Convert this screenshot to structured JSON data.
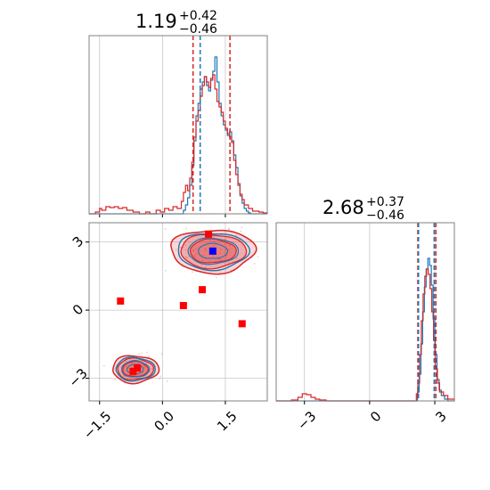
{
  "chart_data": {
    "type": "corner",
    "parameters": 2,
    "colors": {
      "blue": "#1f77b4",
      "red": "#d62728",
      "grid": "#b0b0b0",
      "frame": "#808080"
    },
    "grid": true,
    "titles": [
      {
        "value": "1.19",
        "upper": "+0.42",
        "lower": "−0.46"
      },
      {
        "value": "2.68",
        "upper": "+0.37",
        "lower": "−0.46"
      }
    ],
    "panel_x0": {
      "type": "histogram",
      "xlim": [
        -1.75,
        2.5
      ],
      "ylim": [
        0,
        1
      ],
      "quantile_lines": {
        "blue": [
          0.9
        ],
        "red": [
          0.73,
          1.61
        ]
      },
      "blue_step": [
        [
          -1.75,
          0
        ],
        [
          0.45,
          0
        ],
        [
          0.5,
          0.02
        ],
        [
          0.55,
          0.05
        ],
        [
          0.6,
          0.09
        ],
        [
          0.65,
          0.16
        ],
        [
          0.7,
          0.27
        ],
        [
          0.75,
          0.41
        ],
        [
          0.8,
          0.55
        ],
        [
          0.85,
          0.62
        ],
        [
          0.9,
          0.7
        ],
        [
          0.95,
          0.74
        ],
        [
          1.0,
          0.77
        ],
        [
          1.05,
          0.72
        ],
        [
          1.1,
          0.69
        ],
        [
          1.15,
          0.75
        ],
        [
          1.2,
          0.8
        ],
        [
          1.25,
          0.88
        ],
        [
          1.3,
          0.74
        ],
        [
          1.35,
          0.62
        ],
        [
          1.4,
          0.55
        ],
        [
          1.45,
          0.5
        ],
        [
          1.5,
          0.47
        ],
        [
          1.55,
          0.44
        ],
        [
          1.6,
          0.46
        ],
        [
          1.65,
          0.41
        ],
        [
          1.7,
          0.33
        ],
        [
          1.75,
          0.26
        ],
        [
          1.8,
          0.17
        ],
        [
          1.85,
          0.1
        ],
        [
          1.9,
          0.06
        ],
        [
          1.95,
          0.03
        ],
        [
          2.0,
          0.015
        ],
        [
          2.05,
          0.005
        ],
        [
          2.1,
          0
        ],
        [
          2.5,
          0
        ]
      ],
      "red_step": [
        [
          -1.75,
          0
        ],
        [
          -1.6,
          0.01
        ],
        [
          -1.5,
          0.03
        ],
        [
          -1.45,
          0.02
        ],
        [
          -1.35,
          0.04
        ],
        [
          -1.25,
          0.035
        ],
        [
          -1.15,
          0.04
        ],
        [
          -1.05,
          0.03
        ],
        [
          -0.95,
          0.035
        ],
        [
          -0.85,
          0.02
        ],
        [
          -0.7,
          0.01
        ],
        [
          -0.55,
          0
        ],
        [
          -0.4,
          0.01
        ],
        [
          -0.3,
          0
        ],
        [
          -0.15,
          0.02
        ],
        [
          -0.05,
          0.01
        ],
        [
          0.05,
          0.03
        ],
        [
          0.15,
          0.02
        ],
        [
          0.25,
          0.04
        ],
        [
          0.35,
          0.03
        ],
        [
          0.45,
          0.07
        ],
        [
          0.5,
          0.12
        ],
        [
          0.55,
          0.16
        ],
        [
          0.6,
          0.13
        ],
        [
          0.65,
          0.2
        ],
        [
          0.7,
          0.29
        ],
        [
          0.75,
          0.43
        ],
        [
          0.8,
          0.52
        ],
        [
          0.85,
          0.58
        ],
        [
          0.9,
          0.66
        ],
        [
          0.95,
          0.72
        ],
        [
          1.0,
          0.77
        ],
        [
          1.05,
          0.74
        ],
        [
          1.1,
          0.71
        ],
        [
          1.15,
          0.76
        ],
        [
          1.2,
          0.78
        ],
        [
          1.25,
          0.7
        ],
        [
          1.3,
          0.63
        ],
        [
          1.35,
          0.6
        ],
        [
          1.4,
          0.57
        ],
        [
          1.45,
          0.52
        ],
        [
          1.5,
          0.48
        ],
        [
          1.55,
          0.45
        ],
        [
          1.6,
          0.43
        ],
        [
          1.65,
          0.4
        ],
        [
          1.7,
          0.3
        ],
        [
          1.75,
          0.22
        ],
        [
          1.8,
          0.16
        ],
        [
          1.85,
          0.11
        ],
        [
          1.9,
          0.08
        ],
        [
          1.95,
          0.05
        ],
        [
          2.05,
          0.03
        ],
        [
          2.15,
          0.015
        ],
        [
          2.3,
          0.01
        ],
        [
          2.4,
          0.005
        ],
        [
          2.5,
          0
        ]
      ]
    },
    "panel_x1": {
      "type": "histogram",
      "xlim": [
        -4.3,
        3.9
      ],
      "ylim": [
        0,
        1
      ],
      "quantile_lines": {
        "blue": [
          2.25,
          2.97
        ],
        "red": [
          2.22,
          3.05
        ]
      },
      "blue_step": [
        [
          -4.3,
          0
        ],
        [
          2.1,
          0
        ],
        [
          2.2,
          0.05
        ],
        [
          2.28,
          0.15
        ],
        [
          2.36,
          0.32
        ],
        [
          2.44,
          0.5
        ],
        [
          2.52,
          0.64
        ],
        [
          2.6,
          0.74
        ],
        [
          2.68,
          0.8
        ],
        [
          2.76,
          0.76
        ],
        [
          2.84,
          0.65
        ],
        [
          2.92,
          0.46
        ],
        [
          3.0,
          0.26
        ],
        [
          3.1,
          0.12
        ],
        [
          3.2,
          0.06
        ],
        [
          3.3,
          0.03
        ],
        [
          3.45,
          0.01
        ],
        [
          3.6,
          0
        ],
        [
          3.9,
          0
        ]
      ],
      "red_step": [
        [
          -4.3,
          0
        ],
        [
          -3.6,
          0.005
        ],
        [
          -3.3,
          0.02
        ],
        [
          -3.1,
          0.04
        ],
        [
          -2.9,
          0.035
        ],
        [
          -2.7,
          0.02
        ],
        [
          -2.5,
          0.01
        ],
        [
          -2.3,
          0.005
        ],
        [
          -2.0,
          0
        ],
        [
          2.05,
          0
        ],
        [
          2.15,
          0.04
        ],
        [
          2.22,
          0.1
        ],
        [
          2.3,
          0.26
        ],
        [
          2.38,
          0.45
        ],
        [
          2.46,
          0.6
        ],
        [
          2.54,
          0.7
        ],
        [
          2.62,
          0.74
        ],
        [
          2.7,
          0.71
        ],
        [
          2.78,
          0.63
        ],
        [
          2.86,
          0.5
        ],
        [
          2.94,
          0.34
        ],
        [
          3.02,
          0.18
        ],
        [
          3.12,
          0.1
        ],
        [
          3.22,
          0.05
        ],
        [
          3.4,
          0.03
        ],
        [
          3.6,
          0.01
        ],
        [
          3.9,
          0
        ]
      ]
    },
    "panel_joint": {
      "type": "contour",
      "xlim": [
        -1.75,
        2.5
      ],
      "ylim": [
        -4.0,
        3.85
      ],
      "xticks": [
        "−1.5",
        "0.0",
        "1.5"
      ],
      "xtick_values": [
        -1.5,
        0.0,
        1.5
      ],
      "yticks": [
        "−3",
        "0",
        "3"
      ],
      "ytick_values": [
        -3,
        0,
        3
      ],
      "red_markers": [
        {
          "x": 1.1,
          "y": 3.35
        },
        {
          "x": -1.0,
          "y": 0.4
        },
        {
          "x": 0.5,
          "y": 0.2
        },
        {
          "x": 0.95,
          "y": 0.9
        },
        {
          "x": 1.9,
          "y": -0.6
        },
        {
          "x": -0.6,
          "y": -2.55
        },
        {
          "x": -0.7,
          "y": -2.7
        }
      ],
      "blue_markers": [
        {
          "x": 1.2,
          "y": 2.6
        }
      ],
      "modes": [
        {
          "cx": 1.2,
          "cy": 2.6,
          "rx_outer": 1.0,
          "ry_outer": 0.95,
          "rx_inner": 0.75,
          "ry_inner": 0.65
        },
        {
          "cx": -0.65,
          "cy": -2.6,
          "rx_outer": 0.55,
          "ry_outer": 0.6,
          "rx_inner": 0.3,
          "ry_inner": 0.25
        }
      ]
    }
  }
}
